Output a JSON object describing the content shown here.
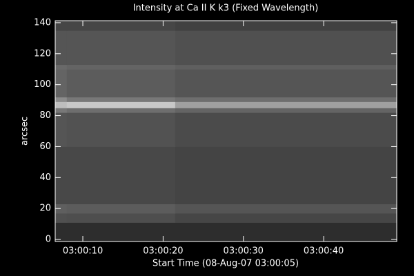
{
  "chart_data": {
    "type": "heatmap",
    "title": "Intensity at Ca II K k3 (Fixed Wavelength)",
    "x_label": "Start Time (08-Aug-07 03:00:05)",
    "y_label": "arcsec",
    "xlim": [
      1.56,
      44.1
    ],
    "ylim": [
      -1.3,
      141.3
    ],
    "xticks": [
      {
        "value": 5,
        "label": "03:00:10"
      },
      {
        "value": 15,
        "label": "03:00:20"
      },
      {
        "value": 25,
        "label": "03:00:30"
      },
      {
        "value": 35,
        "label": "03:00:40"
      }
    ],
    "yticks": [
      0,
      20,
      40,
      60,
      80,
      100,
      120,
      140
    ],
    "x_edges": [
      1.56,
      3.0,
      16.5,
      44.1
    ],
    "y_edges": [
      -1.3,
      11,
      17,
      23,
      60,
      82,
      85,
      89,
      92,
      110,
      113,
      135,
      141.3
    ],
    "values": [
      [
        45,
        45,
        45
      ],
      [
        80,
        78,
        70
      ],
      [
        95,
        92,
        85
      ],
      [
        72,
        72,
        68
      ],
      [
        85,
        82,
        75
      ],
      [
        120,
        110,
        100
      ],
      [
        190,
        200,
        160
      ],
      [
        140,
        120,
        110
      ],
      [
        100,
        92,
        85
      ],
      [
        105,
        100,
        95
      ],
      [
        85,
        85,
        80
      ],
      [
        70,
        70,
        65
      ]
    ],
    "colormap": "gray"
  }
}
